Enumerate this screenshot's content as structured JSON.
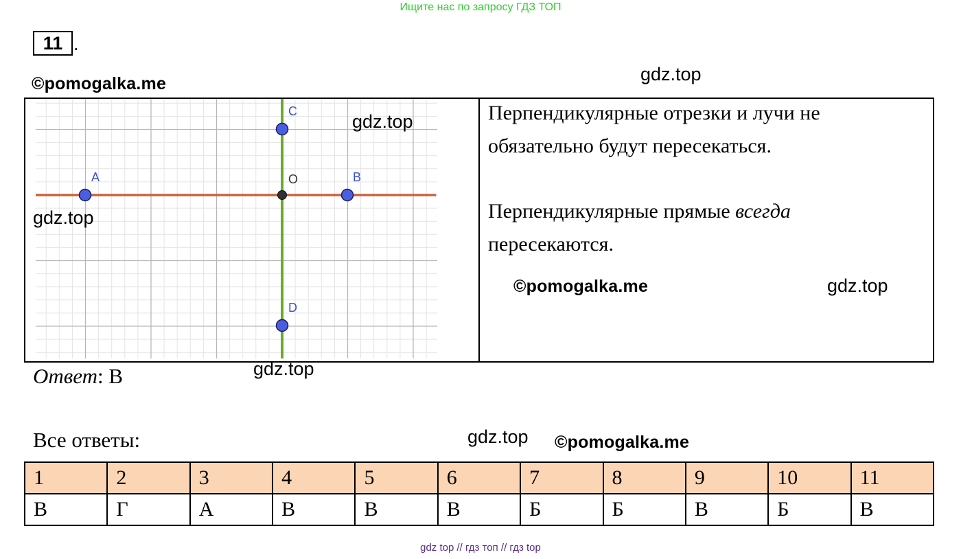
{
  "banner": "Ищите нас по запросу ГДЗ ТОП",
  "task": {
    "number": "11",
    "dot": "."
  },
  "watermarks": {
    "pomogalka": "©pomogalka.me",
    "gdz": "gdz.top"
  },
  "graph": {
    "points": [
      {
        "label": "A"
      },
      {
        "label": "B"
      },
      {
        "label": "C"
      },
      {
        "label": "D"
      },
      {
        "label": "O"
      }
    ],
    "colors": {
      "horizontal": "#c8643c",
      "vertical": "#6aaa2a",
      "point": "#4a5fe0",
      "origin": "#333333"
    }
  },
  "explanation": {
    "line1": "Перпендикулярные отрезки и лучи не",
    "line2": "обязательно будут пересекаться.",
    "line3_prefix": "Перпендикулярные прямые ",
    "line3_em": "всегда",
    "line4": "пересекаются."
  },
  "answer": {
    "label": "Ответ",
    "sep": ": ",
    "value": "В"
  },
  "all_answers": {
    "title": "Все ответы:",
    "numbers": [
      "1",
      "2",
      "3",
      "4",
      "5",
      "6",
      "7",
      "8",
      "9",
      "10",
      "11"
    ],
    "values": [
      "В",
      "Г",
      "А",
      "В",
      "В",
      "В",
      "Б",
      "Б",
      "В",
      "Б",
      "В"
    ]
  },
  "footer": "gdz top  //  гдз топ  //  гдз top"
}
